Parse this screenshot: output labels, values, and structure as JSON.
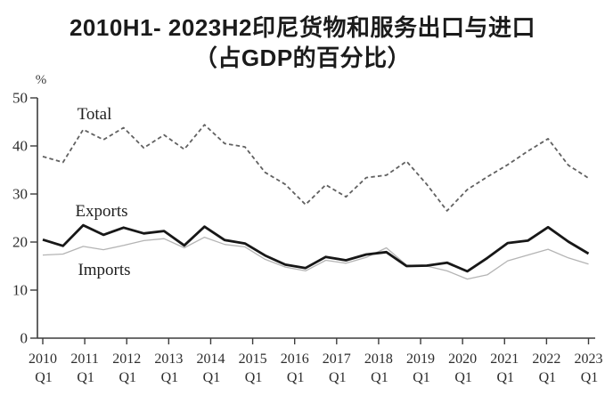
{
  "title": {
    "line1": "2010H1- 2023H2印尼货物和服务出口与进口",
    "line2": "（占GDP的百分比）"
  },
  "chart_data": {
    "type": "line",
    "title": "2010H1- 2023H2印尼货物和服务出口与进口（占GDP的百分比）",
    "unit_label": "%",
    "ylabel": "% of GDP",
    "xlabel": "",
    "ylim": [
      0,
      50
    ],
    "y_ticks": [
      0,
      10,
      20,
      30,
      40,
      50
    ],
    "x_tick_years": [
      "2010",
      "2011",
      "2012",
      "2013",
      "2014",
      "2015",
      "2016",
      "2017",
      "2018",
      "2019",
      "2020",
      "2021",
      "2022",
      "2023"
    ],
    "x_tick_subline": "Q1",
    "grid": false,
    "legend_position": "inline-annotations",
    "x": [
      "2010H1",
      "2010H2",
      "2011H1",
      "2011H2",
      "2012H1",
      "2012H2",
      "2013H1",
      "2013H2",
      "2014H1",
      "2014H2",
      "2015H1",
      "2015H2",
      "2016H1",
      "2016H2",
      "2017H1",
      "2017H2",
      "2018H1",
      "2018H2",
      "2019H1",
      "2019H2",
      "2020H1",
      "2020H2",
      "2021H1",
      "2021H2",
      "2022H1",
      "2022H2",
      "2023H1",
      "2023H2"
    ],
    "series": [
      {
        "name": "Total",
        "style": "dashed",
        "color": "#616161",
        "stroke_width": 1.8,
        "values": [
          37.8,
          36.6,
          43.4,
          41.3,
          43.8,
          39.6,
          42.3,
          39.3,
          44.4,
          40.5,
          39.8,
          34.5,
          32.0,
          27.8,
          31.9,
          29.4,
          33.4,
          33.9,
          36.8,
          32.0,
          26.5,
          30.9,
          33.6,
          36.1,
          38.9,
          41.5,
          36.0,
          33.3
        ]
      },
      {
        "name": "Exports",
        "style": "solid",
        "color": "#171717",
        "stroke_width": 2.8,
        "values": [
          20.5,
          19.2,
          23.5,
          21.5,
          23.0,
          21.8,
          22.3,
          19.3,
          23.2,
          20.4,
          19.7,
          17.2,
          15.3,
          14.6,
          16.9,
          16.2,
          17.4,
          17.9,
          15.0,
          15.1,
          15.7,
          13.9,
          16.7,
          19.8,
          20.3,
          23.1,
          20.1,
          17.6
        ]
      },
      {
        "name": "Imports",
        "style": "solid",
        "color": "#b4b4b4",
        "stroke_width": 1.3,
        "values": [
          17.3,
          17.5,
          19.1,
          18.4,
          19.3,
          20.3,
          20.7,
          18.8,
          21.0,
          19.5,
          19.0,
          16.4,
          14.8,
          14.0,
          16.2,
          15.6,
          16.8,
          18.8,
          15.2,
          15.0,
          14.0,
          12.3,
          13.2,
          16.1,
          17.3,
          18.5,
          16.7,
          15.4
        ]
      }
    ],
    "annotations": [
      {
        "text": "Total",
        "x": 106,
        "y": 134
      },
      {
        "text": "Exports",
        "x": 114,
        "y": 243
      },
      {
        "text": "Imports",
        "x": 117,
        "y": 309
      }
    ],
    "axis_color": "#3c3c3c"
  }
}
